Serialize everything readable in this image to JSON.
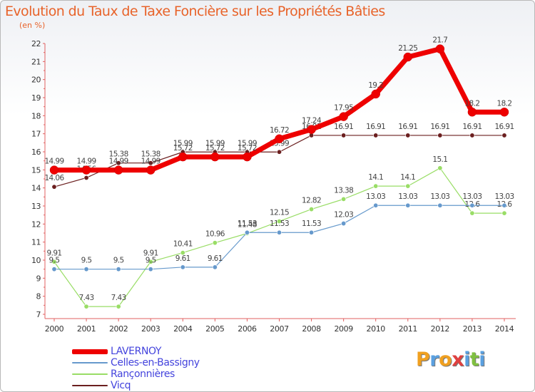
{
  "chart_data": {
    "type": "line",
    "title": "Evolution du Taux de Taxe Foncière sur les Propriétés Bâties",
    "ylabel": "(en %)",
    "xlabel": "",
    "x": [
      "2000",
      "2001",
      "2002",
      "2003",
      "2004",
      "2005",
      "2006",
      "2007",
      "2008",
      "2009",
      "2010",
      "2011",
      "2012",
      "2013",
      "2014"
    ],
    "ylim": [
      7,
      22
    ],
    "yticks": [
      "7",
      "8",
      "9",
      "10",
      "11",
      "12",
      "13",
      "14",
      "15",
      "16",
      "17",
      "18",
      "19",
      "20",
      "21",
      "22"
    ],
    "series": [
      {
        "name": "Vicq",
        "color": "#6b1f1f",
        "values": [
          14.06,
          14.56,
          15.38,
          15.38,
          15.99,
          15.99,
          15.99,
          15.99,
          16.91,
          16.91,
          16.91,
          16.91,
          16.91,
          16.91,
          16.91
        ],
        "labels": [
          "14.06",
          "14.56",
          "15.38",
          "15.38",
          "15.99",
          "15.99",
          "15.99",
          "15.99",
          "16.91",
          "16.91",
          "16.91",
          "16.91",
          "16.91",
          "16.91",
          "16.91"
        ]
      },
      {
        "name": "Rançonnières",
        "color": "#99dd66",
        "values": [
          9.91,
          7.43,
          7.43,
          9.91,
          10.41,
          10.96,
          11.48,
          12.15,
          12.82,
          13.38,
          14.1,
          14.1,
          15.1,
          12.6,
          12.6
        ],
        "labels": [
          "9.91",
          "7.43",
          "7.43",
          "9.91",
          "10.41",
          "10.96",
          "11.48",
          "12.15",
          "12.82",
          "13.38",
          "14.1",
          "14.1",
          "15.1",
          "12.6",
          "12.6"
        ]
      },
      {
        "name": "Celles-en-Bassigny",
        "color": "#6699cc",
        "values": [
          9.5,
          9.5,
          9.5,
          9.5,
          9.61,
          9.61,
          11.53,
          11.53,
          11.53,
          12.03,
          13.03,
          13.03,
          13.03,
          13.03,
          13.03
        ],
        "labels": [
          "9.5",
          "9.5",
          "9.5",
          "9.5",
          "9.61",
          "9.61",
          "11.53",
          "11.53",
          "11.53",
          "12.03",
          "13.03",
          "13.03",
          "13.03",
          "13.03",
          "13.03"
        ]
      },
      {
        "name": "LAVERNOY",
        "color": "#ee0000",
        "values": [
          14.99,
          14.99,
          14.99,
          14.99,
          15.72,
          15.72,
          15.72,
          16.72,
          17.24,
          17.95,
          19.2,
          21.25,
          21.7,
          18.2,
          18.2
        ],
        "labels": [
          "14.99",
          "14.99",
          "14.99",
          "14.99",
          "15.72",
          "15.72",
          "15.72",
          "16.72",
          "17.24",
          "17.95",
          "19.2",
          "21.25",
          "21.7",
          "18.2",
          "18.2"
        ]
      }
    ],
    "legend": [
      "LAVERNOY",
      "Celles-en-Bassigny",
      "Rançonnières",
      "Vicq"
    ],
    "legend_placement": "bottom-left",
    "grid": false
  },
  "brand": {
    "letters": [
      "P",
      "r",
      "o",
      "x",
      "i",
      "t",
      "i"
    ],
    "colors": [
      "#f0a020",
      "#5aa0e0",
      "#f0a020",
      "#e04040",
      "#5aa0e0",
      "#80c040",
      "#5aa0e0"
    ]
  }
}
